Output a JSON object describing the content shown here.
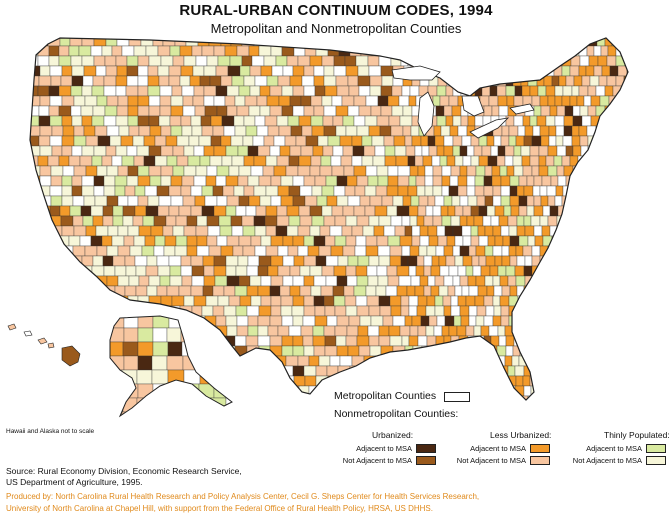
{
  "title": "RURAL-URBAN CONTINUUM CODES, 1994",
  "subtitle": "Metropolitan and Nonmetropolitan Counties",
  "note": "Hawaii and Alaska not to scale",
  "legend": {
    "metro_label": "Metropolitan  Counties",
    "nonmetro_label": "Nonmetropolitan  Counties:",
    "groups": [
      {
        "name": "Urbanized:",
        "adjacent": "Adjacent to MSA",
        "not_adjacent": "Not Adjacent to MSA",
        "colors": {
          "adjacent": "#4a2812",
          "not_adjacent": "#9a5a1c"
        }
      },
      {
        "name": "Less Urbanized:",
        "adjacent": "Adjacent to MSA",
        "not_adjacent": "Not Adjacent to MSA",
        "colors": {
          "adjacent": "#f39a2a",
          "not_adjacent": "#f8c6a0"
        }
      },
      {
        "name": "Thinly Populated:",
        "adjacent": "Adjacent to MSA",
        "not_adjacent": "Not Adjacent to MSA",
        "colors": {
          "adjacent": "#d9eaa0",
          "not_adjacent": "#f7f6d9"
        }
      }
    ],
    "metro_color": "#ffffff"
  },
  "source": {
    "line1": "Source: Rural Economy Division, Economic Research Service,",
    "line2": "US Department of Agriculture, 1995."
  },
  "credit": {
    "line1": "Produced by: North Carolina Rural Health Research and Policy Analysis Center, Cecil G. Sheps Center for Health Services Research,",
    "line2": "University of North Carolina at Chapel Hill, with support from the Federal Office of Rural Health Policy, HRSA, US DHHS."
  }
}
